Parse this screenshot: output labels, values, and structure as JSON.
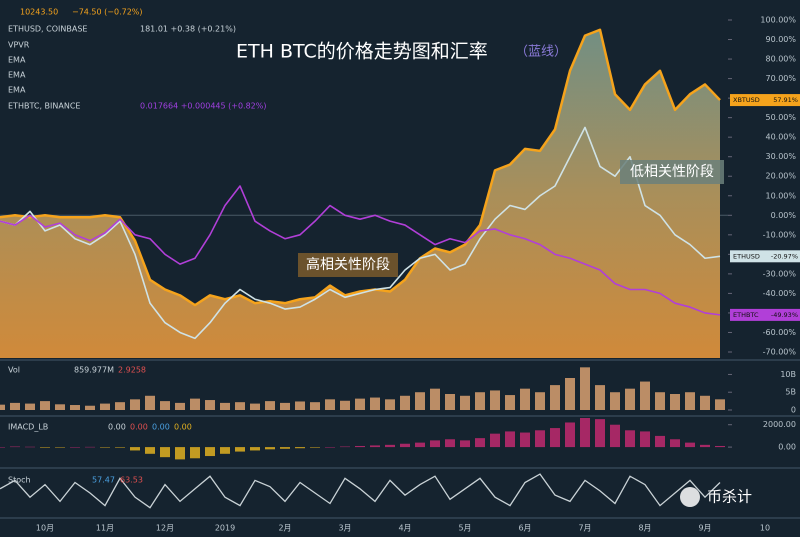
{
  "toolbar": {
    "btc_quote": "10243.50",
    "btc_change": "−74.50 (−0.72%)",
    "eth_symbol": "ETHUSD, COINBASE",
    "eth_quote": "181.01 +0.38 (+0.21%)",
    "indicators": [
      "VPVR",
      "EMA",
      "EMA",
      "EMA"
    ],
    "ethbtc_symbol": "ETHBTC, BINANCE",
    "ethbtc_quote": "0.017664 +0.000445 (+0.82%)",
    "watermark": "币杀计"
  },
  "chart_data": [
    {
      "type": "line",
      "title": "ETH BTC的价格走势图和汇率",
      "subtitle": "（蓝线）",
      "annotations": [
        "高相关性阶段",
        "低相关性阶段"
      ],
      "categories": [
        null,
        null,
        null,
        "10月",
        null,
        null,
        null,
        "11月",
        null,
        null,
        null,
        "12月",
        null,
        null,
        null,
        "2019",
        null,
        null,
        null,
        "2月",
        null,
        null,
        null,
        "3月",
        null,
        null,
        null,
        "4月",
        null,
        null,
        null,
        "5月",
        null,
        null,
        null,
        "6月",
        null,
        null,
        null,
        "7月",
        null,
        null,
        null,
        "8月",
        null,
        null,
        null,
        "9月",
        null,
        null,
        null,
        "10"
      ],
      "series": [
        {
          "name": "XBTUSD",
          "tag": "57.91%",
          "color": "#f5a31c",
          "area": true,
          "values": [
            -1,
            0,
            -1,
            0,
            -1,
            -1,
            -1,
            0,
            -1,
            -13,
            -33,
            -38,
            -41,
            -46,
            -41,
            -43,
            -41,
            -45,
            -44,
            -45,
            -43,
            -42,
            -36,
            -41,
            -39,
            -38,
            -39,
            -33,
            -22,
            -17,
            -19,
            -15,
            -5,
            23,
            26,
            34,
            33,
            44,
            74,
            92,
            95,
            62,
            54,
            67,
            74,
            54,
            62,
            67,
            59,
            null,
            null,
            null
          ]
        },
        {
          "name": "ETHUSD",
          "tag": "-20.97%",
          "color": "#cfe2e6",
          "values": [
            -3,
            -5,
            2,
            -8,
            -5,
            -12,
            -15,
            -10,
            -3,
            -20,
            -45,
            -55,
            -60,
            -63,
            -55,
            -45,
            -38,
            -43,
            -45,
            -48,
            -47,
            -43,
            -38,
            -42,
            -40,
            -38,
            -37,
            -28,
            -22,
            -20,
            -28,
            -25,
            -12,
            -2,
            5,
            3,
            10,
            15,
            30,
            45,
            25,
            20,
            30,
            5,
            0,
            -10,
            -15,
            -22,
            -21,
            null,
            null,
            null
          ]
        },
        {
          "name": "ETHBTC",
          "tag": "-49.93%",
          "color": "#b13fd8",
          "values": [
            -3,
            -5,
            0,
            -6,
            -4,
            -10,
            -13,
            -9,
            -2,
            -10,
            -12,
            -20,
            -25,
            -22,
            -10,
            5,
            15,
            -3,
            -8,
            -12,
            -10,
            -3,
            5,
            0,
            -2,
            0,
            -3,
            -5,
            -10,
            -15,
            -12,
            -14,
            -8,
            -7,
            -10,
            -12,
            -15,
            -20,
            -22,
            -25,
            -28,
            -35,
            -38,
            -38,
            -40,
            -45,
            -47,
            -50,
            -51,
            null,
            null,
            null
          ]
        }
      ],
      "ylim": [
        -72,
        100
      ],
      "yticks": [
        {
          "value": 100,
          "label": "100.00%"
        },
        {
          "value": 90,
          "label": "90.00%"
        },
        {
          "value": 80,
          "label": "80.00%"
        },
        {
          "value": 70,
          "label": "70.00%"
        },
        {
          "value": 60,
          "label": "60.00%"
        },
        {
          "value": 50,
          "label": "50.00%"
        },
        {
          "value": 40,
          "label": "40.00%"
        },
        {
          "value": 30,
          "label": "30.00%"
        },
        {
          "value": 20,
          "label": "20.00%"
        },
        {
          "value": 10,
          "label": "10.00%"
        },
        {
          "value": 0,
          "label": "0.00%"
        },
        {
          "value": -10,
          "label": "-10.00%"
        },
        {
          "value": -20,
          "label": "-20.00%"
        },
        {
          "value": -30,
          "label": "-30.00%"
        },
        {
          "value": -40,
          "label": "-40.00%"
        },
        {
          "value": -50,
          "label": "-50.00%"
        },
        {
          "value": -60,
          "label": "-60.00%"
        },
        {
          "value": -70,
          "label": "-70.00%"
        }
      ]
    },
    {
      "type": "bar",
      "title": "Vol",
      "readouts": [
        "859.977M",
        "2.9258"
      ],
      "color": "#d8a070",
      "values": [
        1.5,
        2,
        1.8,
        2.5,
        1.6,
        1.4,
        1.2,
        1.8,
        2.2,
        3,
        4,
        2.5,
        2,
        3.2,
        2.8,
        2,
        2.2,
        1.8,
        2.5,
        2,
        2.4,
        2.2,
        3,
        2.6,
        3.2,
        3.5,
        3,
        4,
        5,
        6,
        4.5,
        4,
        5,
        5.5,
        4.2,
        6,
        5,
        7,
        9,
        12,
        7,
        5,
        6,
        8,
        5,
        4.5,
        5,
        4,
        3
      ],
      "ylim": [
        0,
        13.5
      ],
      "yticks": [
        {
          "value": 10,
          "label": "10B"
        },
        {
          "value": 5,
          "label": "5B"
        },
        0
      ]
    },
    {
      "type": "bar",
      "title": "IMACD_LB",
      "readouts": [
        "0.00",
        "0.00",
        "0.00",
        "0.00"
      ],
      "color": "#c0296e",
      "color_negative": "#e0b020",
      "values": [
        0,
        50,
        30,
        -50,
        -30,
        0,
        20,
        -20,
        -50,
        -300,
        -600,
        -900,
        -1100,
        -1000,
        -800,
        -600,
        -400,
        -300,
        -200,
        -150,
        -100,
        -50,
        0,
        50,
        100,
        150,
        200,
        300,
        400,
        600,
        700,
        600,
        800,
        1200,
        1400,
        1300,
        1500,
        1700,
        2200,
        2600,
        2500,
        2000,
        1500,
        1400,
        1000,
        700,
        400,
        200,
        100
      ],
      "ylim": [
        -1600,
        2600
      ],
      "yticks": [
        {
          "value": 2000,
          "label": "2000.00"
        },
        {
          "value": 0,
          "label": "0.00"
        }
      ]
    },
    {
      "type": "line",
      "title": "Stoch",
      "readouts": [
        "57.47",
        "63.53"
      ],
      "color": "#c9d2d6",
      "values": [
        60,
        80,
        40,
        70,
        30,
        75,
        50,
        20,
        85,
        40,
        15,
        70,
        30,
        60,
        90,
        40,
        20,
        80,
        65,
        30,
        75,
        50,
        25,
        85,
        60,
        30,
        80,
        45,
        70,
        90,
        35,
        60,
        85,
        40,
        20,
        75,
        95,
        45,
        30,
        80,
        55,
        25,
        90,
        70,
        20,
        50,
        80,
        40,
        75
      ],
      "ylim": [
        0,
        100
      ]
    }
  ]
}
